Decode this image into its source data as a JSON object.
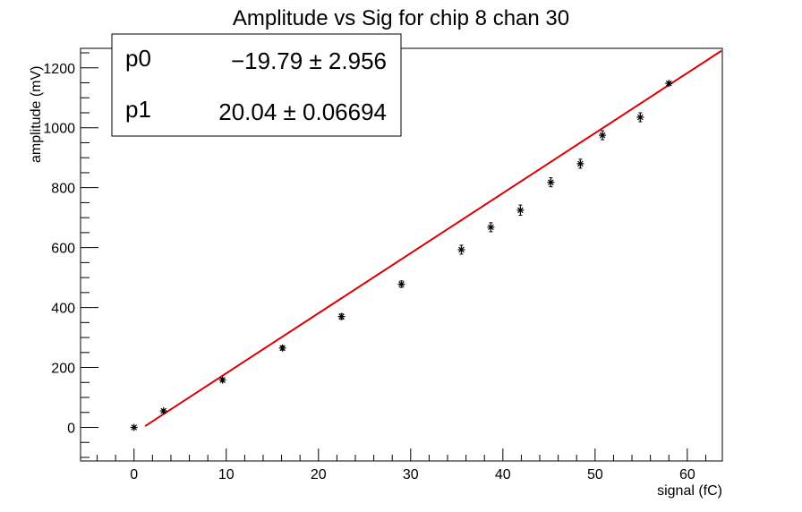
{
  "chart_data": {
    "type": "scatter",
    "title": "Amplitude vs Sig for chip 8 chan 30",
    "xlabel": "signal (fC)",
    "ylabel": "amplitude (mV)",
    "xlim": [
      -5.8,
      63.8
    ],
    "ylim": [
      -112,
      1265
    ],
    "x_ticks": [
      0,
      10,
      20,
      30,
      40,
      50,
      60
    ],
    "y_ticks": [
      0,
      200,
      400,
      600,
      800,
      1000,
      1200
    ],
    "x_minor_step": 2,
    "y_minor_step": 50,
    "grid": false,
    "series": [
      {
        "marker": "star",
        "color": "#000000",
        "x": [
          0,
          3.2,
          9.6,
          16.1,
          22.5,
          29.0,
          35.5,
          38.7,
          41.9,
          45.2,
          48.4,
          50.8,
          54.9,
          58.0
        ],
        "y": [
          0,
          55,
          158,
          265,
          370,
          478,
          593,
          668,
          725,
          818,
          880,
          975,
          1035,
          1148
        ],
        "y_err": [
          4,
          5,
          6,
          7,
          9,
          11,
          15,
          15,
          17,
          15,
          15,
          15,
          15,
          5
        ]
      }
    ],
    "fit": {
      "color": "#dd0000",
      "x_range": [
        1.2,
        63.7
      ],
      "p0": -19.79,
      "p1": 20.04
    },
    "stats_box": {
      "placement": "top-left",
      "rows": [
        {
          "name": "p0",
          "value": "−19.79 ± 2.956"
        },
        {
          "name": "p1",
          "value": "20.04 ± 0.06694"
        }
      ]
    }
  }
}
